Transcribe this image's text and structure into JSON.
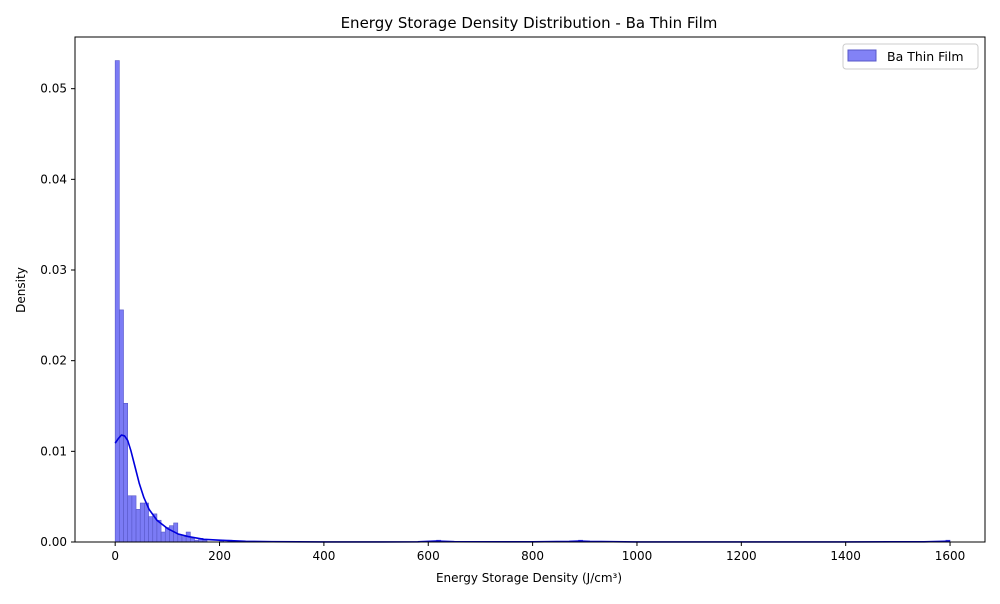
{
  "chart_data": {
    "type": "bar",
    "title": "Energy Storage Density Distribution - Ba Thin Film",
    "xlabel": "Energy Storage Density (J/cm³)",
    "ylabel": "Density",
    "xlim": [
      -77,
      1667
    ],
    "ylim": [
      0,
      0.0557
    ],
    "grid": false,
    "legend_position": "top-right",
    "x_ticks": [
      0,
      200,
      400,
      600,
      800,
      1000,
      1200,
      1400,
      1600
    ],
    "y_ticks": [
      0.0,
      0.01,
      0.02,
      0.03,
      0.04,
      0.05
    ],
    "x_tick_labels": [
      "0",
      "200",
      "400",
      "600",
      "800",
      "1000",
      "1200",
      "1400",
      "1600"
    ],
    "y_tick_labels": [
      "0.00",
      "0.01",
      "0.02",
      "0.03",
      "0.04",
      "0.05"
    ],
    "bin_width": 8,
    "series": [
      {
        "name": "Ba Thin Film",
        "kind": "histogram",
        "color": "#7b7bf5",
        "edge_color": "#5858c8",
        "bins": [
          {
            "x": 0,
            "density": 0.0531
          },
          {
            "x": 8,
            "density": 0.0256
          },
          {
            "x": 16,
            "density": 0.0153
          },
          {
            "x": 24,
            "density": 0.0051
          },
          {
            "x": 32,
            "density": 0.0051
          },
          {
            "x": 40,
            "density": 0.0036
          },
          {
            "x": 48,
            "density": 0.0043
          },
          {
            "x": 56,
            "density": 0.0043
          },
          {
            "x": 64,
            "density": 0.0028
          },
          {
            "x": 72,
            "density": 0.0031
          },
          {
            "x": 80,
            "density": 0.0024
          },
          {
            "x": 88,
            "density": 0.0011
          },
          {
            "x": 96,
            "density": 0.0016
          },
          {
            "x": 104,
            "density": 0.0018
          },
          {
            "x": 112,
            "density": 0.0021
          },
          {
            "x": 120,
            "density": 0.0008
          },
          {
            "x": 128,
            "density": 0.0006
          },
          {
            "x": 136,
            "density": 0.0011
          },
          {
            "x": 144,
            "density": 0.0004
          },
          {
            "x": 152,
            "density": 0.0002
          },
          {
            "x": 160,
            "density": 0.0004
          },
          {
            "x": 168,
            "density": 0.0002
          },
          {
            "x": 200,
            "density": 0.0002
          },
          {
            "x": 216,
            "density": 0.0002
          },
          {
            "x": 616,
            "density": 0.0002
          },
          {
            "x": 888,
            "density": 0.0002
          },
          {
            "x": 1592,
            "density": 0.0002
          }
        ]
      },
      {
        "name": "KDE",
        "kind": "line",
        "color": "#0000dd",
        "x": [
          0,
          6,
          12,
          18,
          24,
          30,
          38,
          46,
          55,
          65,
          80,
          100,
          120,
          140,
          170,
          200,
          250,
          300,
          400,
          500,
          580,
          615,
          650,
          800,
          870,
          890,
          910,
          1000,
          1200,
          1400,
          1550,
          1590,
          1600
        ],
        "y": [
          0.0109,
          0.0114,
          0.0118,
          0.0117,
          0.0112,
          0.0101,
          0.0083,
          0.0065,
          0.0049,
          0.0036,
          0.0024,
          0.0015,
          0.0009,
          0.0006,
          0.0003,
          0.0002,
          8e-05,
          3e-05,
          1e-05,
          1e-05,
          2e-05,
          0.0001,
          3e-05,
          2e-05,
          6e-05,
          0.0001,
          6e-05,
          1e-05,
          1e-05,
          1e-05,
          2e-05,
          8e-05,
          9e-05
        ]
      }
    ]
  }
}
